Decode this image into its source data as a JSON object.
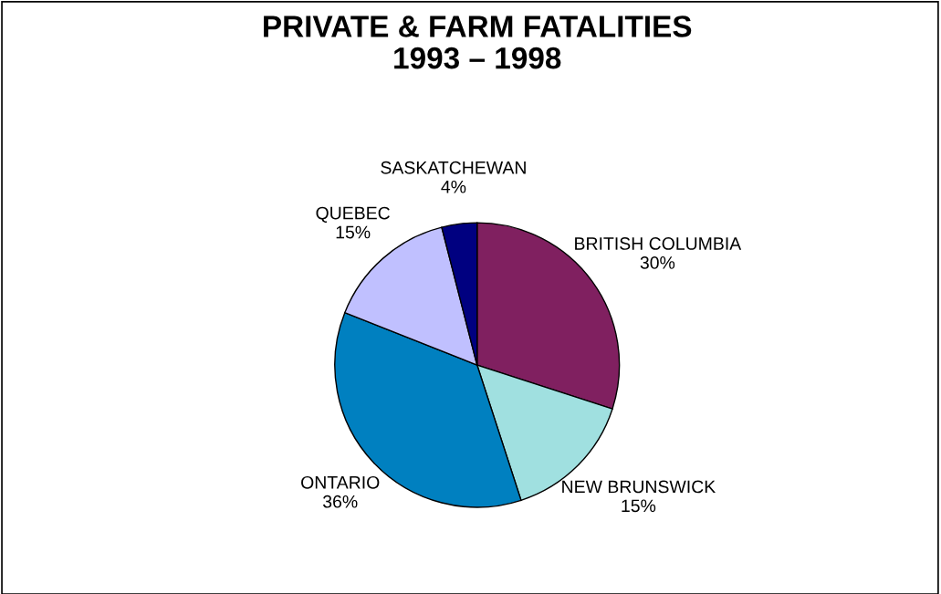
{
  "chart_data": {
    "type": "pie",
    "title": "PRIVATE & FARM FATALITIES\n1993 – 1998",
    "categories": [
      "BRITISH COLUMBIA",
      "NEW BRUNSWICK",
      "ONTARIO",
      "QUEBEC",
      "SASKATCHEWAN"
    ],
    "values": [
      30,
      15,
      36,
      15,
      4
    ],
    "value_labels": [
      "30%",
      "15%",
      "36%",
      "15%",
      "4%"
    ],
    "colors": [
      "#802060",
      "#a0e0e0",
      "#0080c0",
      "#c0c0ff",
      "#000080"
    ],
    "legend": false
  }
}
